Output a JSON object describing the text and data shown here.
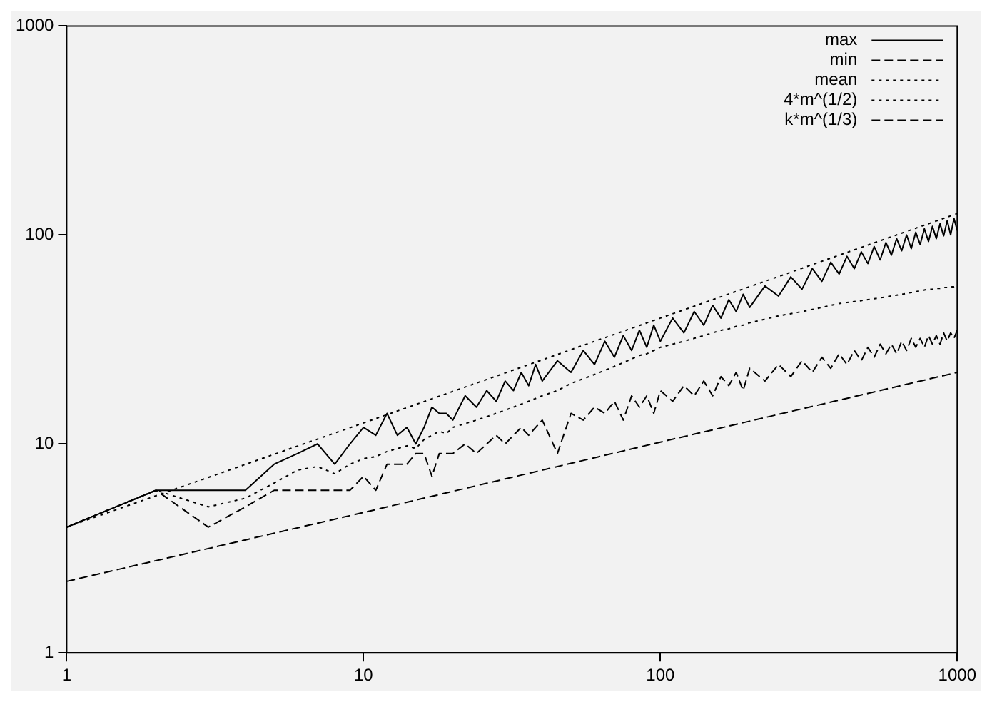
{
  "chart_data": {
    "type": "line",
    "log": "xy",
    "xlim": [
      1,
      1000
    ],
    "ylim": [
      1,
      1000
    ],
    "xticks": [
      1,
      10,
      100,
      1000
    ],
    "yticks": [
      1,
      10,
      100,
      1000
    ],
    "grid": false,
    "legend": "top right",
    "marker": "none",
    "x": [
      1,
      2,
      3,
      4,
      5,
      6,
      7,
      8,
      9,
      10,
      11,
      12,
      13,
      14,
      15,
      16,
      17,
      18,
      19,
      20,
      22,
      24,
      26,
      28,
      30,
      32,
      34,
      36,
      38,
      40,
      45,
      50,
      55,
      60,
      65,
      70,
      75,
      80,
      85,
      90,
      95,
      100,
      110,
      120,
      130,
      140,
      150,
      160,
      170,
      180,
      190,
      200,
      225,
      250,
      275,
      300,
      325,
      350,
      375,
      400,
      425,
      450,
      475,
      500,
      525,
      550,
      575,
      600,
      625,
      650,
      675,
      700,
      725,
      750,
      775,
      800,
      825,
      850,
      875,
      900,
      925,
      950,
      975,
      1000
    ],
    "series": [
      {
        "name": "max",
        "color": "#000000",
        "line_style": "solid",
        "values": [
          4,
          6,
          6,
          6,
          8,
          9,
          10,
          8,
          10,
          12,
          11,
          14,
          11,
          12,
          10,
          12,
          15,
          14,
          14,
          13,
          17,
          15,
          18,
          16,
          20,
          18,
          22,
          19,
          24,
          20,
          25,
          22,
          28,
          24,
          31,
          26,
          33,
          28,
          35,
          29,
          37,
          31,
          40,
          34,
          43,
          37,
          46,
          40,
          49,
          43,
          52,
          45,
          57,
          51,
          63,
          55,
          69,
          60,
          74,
          65,
          79,
          69,
          83,
          73,
          88,
          76,
          92,
          80,
          96,
          84,
          100,
          86,
          103,
          90,
          107,
          93,
          110,
          96,
          113,
          99,
          117,
          100,
          120,
          105
        ]
      },
      {
        "name": "min",
        "color": "#000000",
        "line_style": "dashed",
        "values": [
          4,
          6,
          4,
          5,
          6,
          6,
          6,
          6,
          6,
          7,
          6,
          8,
          8,
          8,
          9,
          9,
          7,
          9,
          9,
          9,
          10,
          9,
          10,
          11,
          10,
          11,
          12,
          11,
          12,
          13,
          9,
          14,
          13,
          15,
          14,
          16,
          13,
          17,
          15,
          17,
          14,
          18,
          16,
          19,
          17,
          20,
          17,
          21,
          19,
          22,
          18,
          23,
          20,
          24,
          21,
          25,
          22,
          26,
          23,
          27,
          24,
          28,
          25,
          29,
          26,
          30,
          27,
          30,
          27,
          31,
          28,
          32,
          29,
          32,
          29,
          33,
          30,
          33,
          30,
          34,
          31,
          34,
          32,
          35
        ]
      },
      {
        "name": "mean",
        "color": "#000000",
        "line_style": "dotted",
        "values": [
          4,
          6,
          5,
          5.5,
          6.5,
          7.5,
          7.8,
          7.2,
          8,
          8.5,
          8.7,
          9.2,
          9.5,
          9.8,
          9.5,
          10.5,
          11,
          11.5,
          11.2,
          12,
          12.5,
          13,
          13.5,
          14,
          14.5,
          15,
          15.5,
          16,
          16.5,
          17,
          18,
          19.5,
          20.5,
          21.5,
          22.5,
          23.5,
          24.5,
          25.5,
          26.5,
          27,
          28,
          29,
          30,
          31,
          32,
          33,
          34,
          35,
          35.5,
          36.5,
          37,
          38,
          39.5,
          41,
          42,
          43,
          44,
          45,
          46,
          47,
          47.5,
          48,
          48.5,
          49,
          49.5,
          50,
          50.5,
          51,
          51.5,
          52,
          52.5,
          53,
          53.5,
          54,
          54.5,
          55,
          55,
          55.5,
          55.5,
          56,
          56,
          56.5,
          56.5,
          57
        ]
      },
      {
        "name": "4*m^(1/2)",
        "color": "#000000",
        "line_style": "dotted",
        "x": [
          1,
          10,
          100,
          1000
        ],
        "values": [
          4,
          12.6,
          40,
          126.5
        ]
      },
      {
        "name": "k*m^(1/3)",
        "color": "#000000",
        "line_style": "dashed",
        "x": [
          1,
          10,
          100,
          1000
        ],
        "values": [
          2.2,
          4.7,
          10.2,
          22
        ]
      }
    ]
  }
}
